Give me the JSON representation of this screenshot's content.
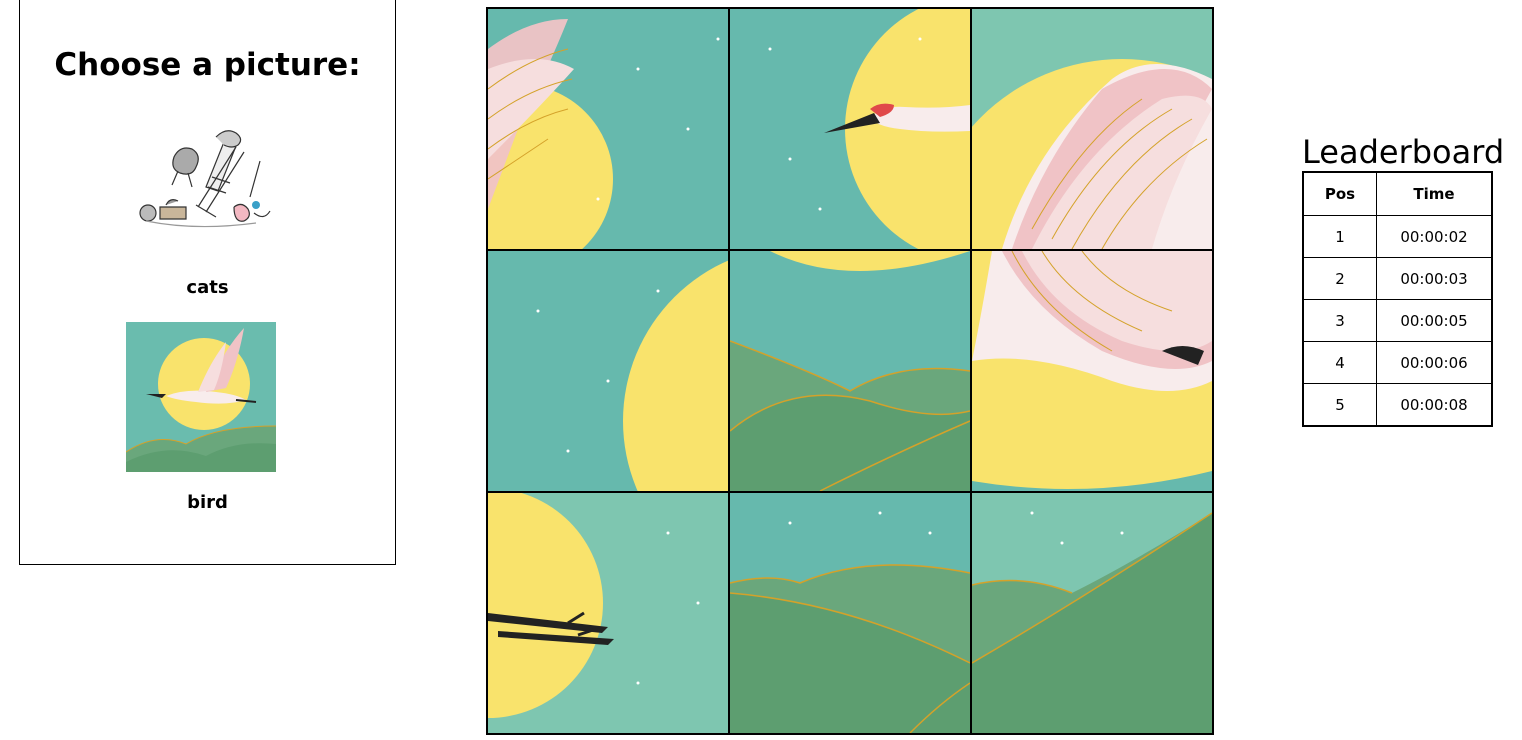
{
  "chooser": {
    "title": "Choose a picture:",
    "options": [
      {
        "label": "cats",
        "thumbnail": "cats-illustration"
      },
      {
        "label": "bird",
        "thumbnail": "crane-moon-illustration"
      }
    ]
  },
  "puzzle": {
    "selected_picture": "bird",
    "grid": "3x3",
    "tiles": [
      {
        "piece": "wing-tip-top-left"
      },
      {
        "piece": "crane-head"
      },
      {
        "piece": "upper-wings"
      },
      {
        "piece": "sky-moon-edge"
      },
      {
        "piece": "hills-moon-bottom"
      },
      {
        "piece": "crane-body-tail"
      },
      {
        "piece": "crane-legs"
      },
      {
        "piece": "hills-middle"
      },
      {
        "piece": "hills-right"
      }
    ]
  },
  "leaderboard": {
    "title": "Leaderboard",
    "headers": {
      "pos": "Pos",
      "time": "Time"
    },
    "rows": [
      {
        "pos": "1",
        "time": "00:00:02"
      },
      {
        "pos": "2",
        "time": "00:00:03"
      },
      {
        "pos": "3",
        "time": "00:00:05"
      },
      {
        "pos": "4",
        "time": "00:00:06"
      },
      {
        "pos": "5",
        "time": "00:00:08"
      }
    ]
  },
  "colors": {
    "sky": "#66b9ad",
    "sky_light": "#7ec6b0",
    "moon": "#f9e36c",
    "hill": "#5d9e70",
    "hill_light": "#6aa77c",
    "gold": "#d4a22a",
    "wing_pink": "#f0c3c6",
    "body_white": "#f8ecec"
  }
}
